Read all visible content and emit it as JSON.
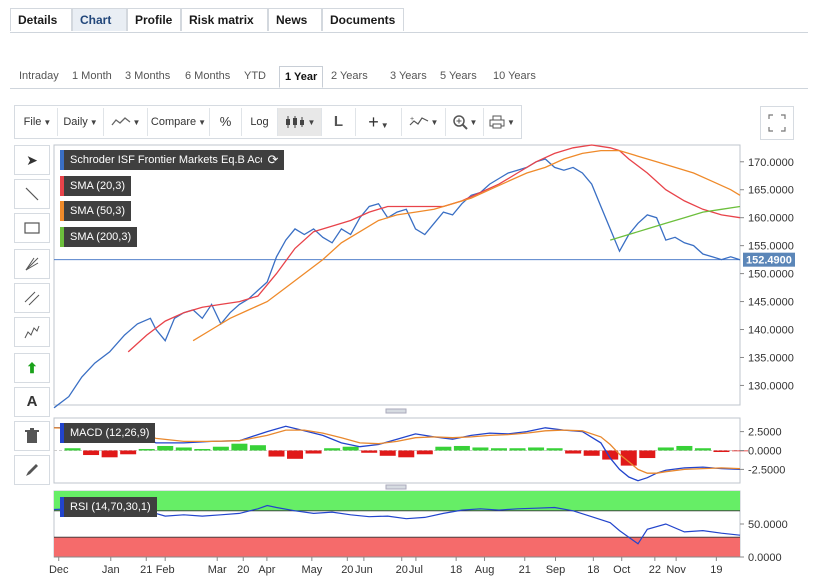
{
  "nav": {
    "tabs": [
      {
        "label": "Details",
        "active": false
      },
      {
        "label": "Chart",
        "active": true
      },
      {
        "label": "Profile",
        "active": false
      },
      {
        "label": "Risk matrix",
        "active": false
      },
      {
        "label": "News",
        "active": false
      },
      {
        "label": "Documents",
        "active": false
      }
    ]
  },
  "ranges": [
    {
      "label": "Intraday",
      "active": false
    },
    {
      "label": "1 Month",
      "active": false
    },
    {
      "label": "3 Months",
      "active": false
    },
    {
      "label": "6 Months",
      "active": false
    },
    {
      "label": "YTD",
      "active": false
    },
    {
      "label": "1 Year",
      "active": true
    },
    {
      "label": "2 Years",
      "active": false
    },
    {
      "label": "3 Years",
      "active": false
    },
    {
      "label": "5 Years",
      "active": false
    },
    {
      "label": "10 Years",
      "active": false
    }
  ],
  "toolbar": {
    "file": "File",
    "interval": "Daily",
    "compare": "Compare",
    "percent": "%",
    "log": "Log",
    "line_tool": "L"
  },
  "icons": {
    "chart_type": "line-chart-icon",
    "candle": "candlestick-icon",
    "crosshair": "crosshair-icon",
    "indicators": "indicators-icon",
    "zoom": "zoom-icon",
    "print": "print-icon",
    "fullscreen": "fullscreen-icon",
    "side_tools": [
      "cursor-icon",
      "line-draw-icon",
      "rectangle-icon",
      "fan-icon",
      "channel-icon",
      "pattern-icon",
      "arrow-up-icon",
      "text-icon",
      "trash-icon",
      "pencil-icon"
    ]
  },
  "colors": {
    "price": "#3a6fc4",
    "sma20": "#e8434a",
    "sma50": "#ef8a2a",
    "sma200": "#6cbf3c",
    "macd_line": "#2244cc",
    "macd_signal": "#e8882e",
    "hist_pos": "#22cc22",
    "hist_neg": "#dd0000",
    "rsi_line": "#2244cc",
    "rsi_overbought": "#66ee66",
    "rsi_oversold": "#f56b6b",
    "last_price_bg": "#5b86b8",
    "arrow_green": "#1aa21a"
  },
  "chart_data": [
    {
      "type": "line",
      "title": "Schroder ISF Frontier Markets Eq.B Acc",
      "last_value_label": "152.4900",
      "x_ticks": [
        "Dec",
        "Jan",
        "21",
        "Feb",
        "Mar",
        "20",
        "Apr",
        "May",
        "20",
        "Jun",
        "20",
        "Jul",
        "18",
        "Aug",
        "21",
        "Sep",
        "18",
        "Oct",
        "22",
        "Nov",
        "19"
      ],
      "y_ticks": [
        "170.0000",
        "165.0000",
        "160.0000",
        "155.0000",
        "150.0000",
        "145.0000",
        "140.0000",
        "135.0000",
        "130.0000"
      ],
      "ylim": [
        126.5,
        173
      ],
      "series": [
        {
          "name": "Schroder ISF Frontier Markets Eq.B Acc",
          "x": [
            0,
            8,
            15,
            22,
            30,
            38,
            45,
            52,
            55,
            60,
            65,
            70,
            75,
            80,
            85,
            90,
            95,
            100,
            105,
            110,
            115,
            120,
            125,
            130,
            135,
            140,
            145,
            150,
            155,
            160,
            165,
            170,
            175,
            180,
            185,
            190,
            195,
            200,
            205,
            210,
            215,
            220,
            225,
            230,
            235,
            240,
            245,
            250,
            255,
            260,
            265,
            270,
            275,
            280,
            285,
            290,
            295,
            300,
            305,
            310,
            315,
            320,
            325,
            330,
            335,
            340,
            345,
            350,
            355,
            360,
            365,
            370
          ],
          "y": [
            126,
            128,
            131.5,
            134,
            136,
            139,
            141,
            142,
            140,
            138,
            142,
            143,
            143.5,
            142,
            144.5,
            141,
            143,
            144.5,
            145.5,
            147,
            148.5,
            153,
            156,
            158,
            157,
            158,
            156.5,
            155.5,
            158,
            157,
            160,
            162,
            162.5,
            160,
            161,
            161.5,
            158,
            157,
            159,
            161,
            160.5,
            162.5,
            164,
            164.5,
            166,
            167,
            168,
            168.5,
            169,
            170,
            170.5,
            169,
            168.5,
            169,
            168,
            166,
            162,
            158,
            154,
            157,
            159,
            160.5,
            160,
            156,
            156.5,
            155.5,
            155,
            153.5,
            153,
            152.5,
            153,
            152.49
          ]
        },
        {
          "name": "SMA (20,3)",
          "x": [
            40,
            50,
            60,
            70,
            80,
            90,
            100,
            110,
            120,
            130,
            140,
            150,
            160,
            170,
            180,
            190,
            200,
            210,
            220,
            230,
            240,
            250,
            260,
            270,
            280,
            290,
            300,
            305,
            310,
            320,
            330,
            340,
            350,
            360,
            370
          ],
          "y": [
            136,
            139,
            141.5,
            143,
            144,
            144.5,
            145,
            146,
            150,
            154.5,
            157.5,
            158.5,
            159.5,
            161,
            162,
            162,
            162,
            162,
            163,
            164.5,
            166,
            168,
            170,
            171.5,
            172.5,
            173,
            172.5,
            172,
            170.5,
            168,
            165,
            163,
            161.5,
            160.5,
            160
          ]
        },
        {
          "name": "SMA (50,3)",
          "x": [
            75,
            85,
            95,
            105,
            115,
            125,
            135,
            145,
            155,
            165,
            175,
            185,
            195,
            205,
            215,
            225,
            235,
            245,
            255,
            265,
            275,
            285,
            295,
            305,
            315,
            325,
            335,
            345,
            355,
            365,
            370
          ],
          "y": [
            138,
            140,
            142,
            143.5,
            145,
            147.5,
            150,
            152.5,
            155.5,
            157.5,
            159.5,
            160.5,
            161,
            161.5,
            162.5,
            163.5,
            165,
            166.5,
            168,
            169,
            170.5,
            171.5,
            172,
            172,
            171,
            170,
            169,
            168,
            166.5,
            165,
            164
          ]
        },
        {
          "name": "SMA (200,3)",
          "x": [
            300,
            310,
            320,
            330,
            340,
            350,
            360,
            370
          ],
          "y": [
            156,
            157,
            158,
            159,
            160,
            161,
            161.5,
            162
          ]
        }
      ]
    },
    {
      "type": "line",
      "title": "MACD (12,26,9)",
      "y_ticks": [
        "2.5000",
        "0.0000",
        "-2.5000"
      ],
      "ylim": [
        -4.3,
        4.3
      ],
      "series": [
        {
          "name": "MACD line",
          "x": [
            0,
            20,
            35,
            45,
            55,
            70,
            85,
            100,
            115,
            125,
            135,
            145,
            155,
            165,
            175,
            185,
            195,
            205,
            215,
            225,
            235,
            245,
            255,
            265,
            275,
            285,
            295,
            300,
            305,
            310,
            315,
            320,
            325,
            330,
            340,
            350,
            360,
            370
          ],
          "y": [
            3,
            3,
            2.8,
            2,
            1,
            1,
            1.2,
            1.3,
            2.5,
            3.2,
            2.6,
            2,
            1,
            0.5,
            0.8,
            1.5,
            2.2,
            1.8,
            1.5,
            2,
            2.3,
            2.2,
            2.5,
            3,
            2.7,
            2.5,
            1,
            -1,
            -2.5,
            -3.5,
            -4,
            -3.6,
            -3,
            -2.6,
            -2.3,
            -2.2,
            -2.4,
            -2.5
          ]
        },
        {
          "name": "Signal",
          "x": [
            0,
            20,
            35,
            45,
            55,
            70,
            85,
            100,
            115,
            125,
            135,
            145,
            155,
            165,
            175,
            185,
            195,
            205,
            215,
            225,
            235,
            245,
            255,
            265,
            275,
            285,
            295,
            300,
            305,
            310,
            315,
            320,
            325,
            330,
            340,
            350,
            360,
            370
          ],
          "y": [
            3,
            2.9,
            2.7,
            2.3,
            1.6,
            1.2,
            1.2,
            1.3,
            2,
            2.7,
            2.7,
            2.3,
            1.7,
            1,
            0.9,
            1.2,
            1.7,
            1.8,
            1.7,
            1.8,
            2,
            2.1,
            2.3,
            2.6,
            2.7,
            2.6,
            1.8,
            0.8,
            -0.5,
            -1.5,
            -2.5,
            -3,
            -3,
            -2.8,
            -2.5,
            -2.4,
            -2.3,
            -2.4
          ]
        },
        {
          "name": "Histogram",
          "x": [
            10,
            20,
            30,
            40,
            50,
            60,
            70,
            80,
            90,
            100,
            110,
            120,
            130,
            140,
            150,
            160,
            170,
            180,
            190,
            200,
            210,
            220,
            230,
            240,
            250,
            260,
            270,
            280,
            290,
            300,
            310,
            320,
            330,
            340,
            350,
            360,
            370
          ],
          "y": [
            0.3,
            -0.6,
            -0.9,
            -0.5,
            0.2,
            0.6,
            0.4,
            0.2,
            0.5,
            0.9,
            0.7,
            -0.8,
            -1.1,
            -0.4,
            0.3,
            0.5,
            -0.3,
            -0.7,
            -0.9,
            -0.5,
            0.5,
            0.6,
            0.4,
            0.3,
            0.3,
            0.4,
            0.3,
            -0.4,
            -0.7,
            -1.2,
            -2,
            -1,
            0.4,
            0.6,
            0.3,
            -0.2,
            -0.1
          ]
        }
      ]
    },
    {
      "type": "line",
      "title": "RSI (14,70,30,1)",
      "y_ticks": [
        "50.0000",
        "0.0000"
      ],
      "ylim": [
        0,
        100
      ],
      "overbought": 70,
      "oversold": 30,
      "series": [
        {
          "name": "RSI",
          "x": [
            0,
            10,
            20,
            30,
            40,
            50,
            60,
            70,
            80,
            90,
            100,
            110,
            115,
            120,
            130,
            140,
            150,
            160,
            170,
            180,
            190,
            200,
            210,
            220,
            230,
            240,
            250,
            260,
            270,
            280,
            290,
            300,
            305,
            310,
            315,
            320,
            330,
            340,
            350,
            360,
            370
          ],
          "y": [
            72,
            73,
            76,
            79,
            76,
            70,
            62,
            64,
            62,
            64,
            66,
            73,
            78,
            75,
            70,
            66,
            68,
            64,
            61,
            62,
            58,
            60,
            66,
            71,
            73,
            71,
            73,
            74,
            75,
            70,
            61,
            52,
            40,
            30,
            20,
            42,
            50,
            38,
            40,
            36,
            33
          ]
        }
      ]
    }
  ]
}
